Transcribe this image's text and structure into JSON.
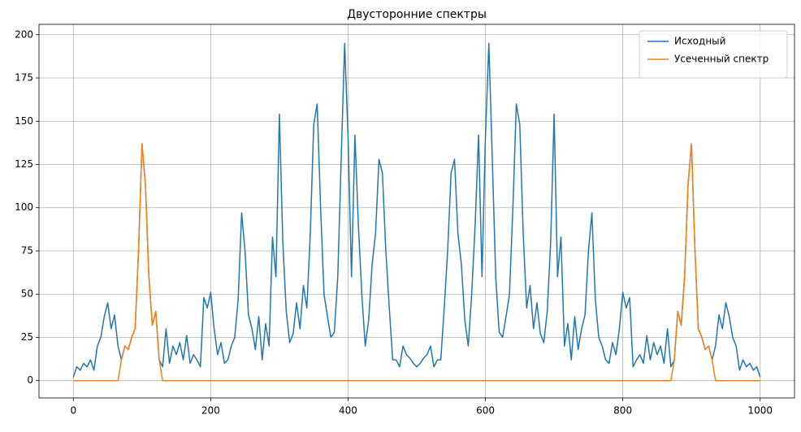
{
  "chart_data": {
    "type": "line",
    "title": "Двусторонние спектры",
    "x": [
      0,
      5,
      10,
      15,
      20,
      25,
      30,
      35,
      40,
      45,
      50,
      55,
      60,
      65,
      70,
      75,
      80,
      85,
      90,
      95,
      100,
      105,
      110,
      115,
      120,
      125,
      130,
      135,
      140,
      145,
      150,
      155,
      160,
      165,
      170,
      175,
      180,
      185,
      190,
      195,
      200,
      205,
      210,
      215,
      220,
      225,
      230,
      235,
      240,
      245,
      250,
      255,
      260,
      265,
      270,
      275,
      280,
      285,
      290,
      295,
      300,
      305,
      310,
      315,
      320,
      325,
      330,
      335,
      340,
      345,
      350,
      355,
      360,
      365,
      370,
      375,
      380,
      385,
      390,
      395,
      400,
      405,
      410,
      415,
      420,
      425,
      430,
      435,
      440,
      445,
      450,
      455,
      460,
      465,
      470,
      475,
      480,
      485,
      490,
      495,
      500,
      505,
      510,
      515,
      520,
      525,
      530,
      535,
      540,
      545,
      550,
      555,
      560,
      565,
      570,
      575,
      580,
      585,
      590,
      595,
      600,
      605,
      610,
      615,
      620,
      625,
      630,
      635,
      640,
      645,
      650,
      655,
      660,
      665,
      670,
      675,
      680,
      685,
      690,
      695,
      700,
      705,
      710,
      715,
      720,
      725,
      730,
      735,
      740,
      745,
      750,
      755,
      760,
      765,
      770,
      775,
      780,
      785,
      790,
      795,
      800,
      805,
      810,
      815,
      820,
      825,
      830,
      835,
      840,
      845,
      850,
      855,
      860,
      865,
      870,
      875,
      880,
      885,
      890,
      895,
      900,
      905,
      910,
      915,
      920,
      925,
      930,
      935,
      940,
      945,
      950,
      955,
      960,
      965,
      970,
      975,
      980,
      985,
      990,
      995,
      1000
    ],
    "series": [
      {
        "name": "Исходный",
        "color": "#1f77b4",
        "values": [
          2,
          8,
          6,
          10,
          8,
          12,
          6,
          20,
          25,
          37,
          45,
          30,
          38,
          20,
          12,
          20,
          18,
          25,
          30,
          76,
          137,
          113,
          60,
          32,
          40,
          12,
          8,
          30,
          10,
          20,
          15,
          22,
          12,
          26,
          10,
          15,
          12,
          8,
          48,
          42,
          51,
          30,
          15,
          22,
          10,
          12,
          20,
          25,
          47,
          97,
          75,
          38,
          30,
          18,
          37,
          12,
          33,
          20,
          83,
          60,
          154,
          80,
          40,
          22,
          27,
          45,
          30,
          55,
          42,
          85,
          148,
          160,
          100,
          50,
          37,
          25,
          28,
          60,
          128,
          195,
          141,
          60,
          142,
          90,
          50,
          20,
          35,
          67,
          85,
          128,
          120,
          75,
          42,
          12,
          12,
          8,
          20,
          15,
          13,
          10,
          8,
          10,
          13,
          15,
          20,
          8,
          12,
          12,
          42,
          75,
          120,
          128,
          85,
          67,
          35,
          20,
          50,
          90,
          142,
          60,
          141,
          195,
          128,
          60,
          28,
          25,
          37,
          50,
          100,
          160,
          148,
          85,
          42,
          55,
          30,
          45,
          27,
          22,
          40,
          80,
          154,
          60,
          83,
          20,
          33,
          12,
          37,
          18,
          30,
          38,
          75,
          97,
          47,
          25,
          20,
          12,
          10,
          22,
          15,
          30,
          51,
          42,
          48,
          8,
          12,
          15,
          10,
          26,
          12,
          22,
          15,
          20,
          10,
          30,
          8,
          12,
          40,
          32,
          60,
          113,
          137,
          76,
          30,
          25,
          18,
          20,
          12,
          20,
          38,
          30,
          45,
          37,
          25,
          20,
          6,
          12,
          8,
          10,
          6,
          8,
          2
        ]
      },
      {
        "name": "Усеченный спектр",
        "color": "#ff7f0e",
        "values": [
          0,
          0,
          0,
          0,
          0,
          0,
          0,
          0,
          0,
          0,
          0,
          0,
          0,
          0,
          12,
          20,
          18,
          25,
          30,
          76,
          137,
          113,
          60,
          32,
          40,
          12,
          0,
          0,
          0,
          0,
          0,
          0,
          0,
          0,
          0,
          0,
          0,
          0,
          0,
          0,
          0,
          0,
          0,
          0,
          0,
          0,
          0,
          0,
          0,
          0,
          0,
          0,
          0,
          0,
          0,
          0,
          0,
          0,
          0,
          0,
          0,
          0,
          0,
          0,
          0,
          0,
          0,
          0,
          0,
          0,
          0,
          0,
          0,
          0,
          0,
          0,
          0,
          0,
          0,
          0,
          0,
          0,
          0,
          0,
          0,
          0,
          0,
          0,
          0,
          0,
          0,
          0,
          0,
          0,
          0,
          0,
          0,
          0,
          0,
          0,
          0,
          0,
          0,
          0,
          0,
          0,
          0,
          0,
          0,
          0,
          0,
          0,
          0,
          0,
          0,
          0,
          0,
          0,
          0,
          0,
          0,
          0,
          0,
          0,
          0,
          0,
          0,
          0,
          0,
          0,
          0,
          0,
          0,
          0,
          0,
          0,
          0,
          0,
          0,
          0,
          0,
          0,
          0,
          0,
          0,
          0,
          0,
          0,
          0,
          0,
          0,
          0,
          0,
          0,
          0,
          0,
          0,
          0,
          0,
          0,
          0,
          0,
          0,
          0,
          0,
          0,
          0,
          0,
          0,
          0,
          0,
          0,
          0,
          0,
          0,
          12,
          40,
          32,
          60,
          113,
          137,
          76,
          30,
          25,
          18,
          20,
          12,
          0,
          0,
          0,
          0,
          0,
          0,
          0,
          0,
          0,
          0,
          0,
          0,
          0,
          0
        ]
      }
    ],
    "xlim": [
      -50,
      1050
    ],
    "xticks": [
      0,
      200,
      400,
      600,
      800,
      1000
    ],
    "ylim": [
      -10,
      206
    ],
    "yticks": [
      0,
      25,
      50,
      75,
      100,
      125,
      150,
      175,
      200
    ],
    "grid": true,
    "legend": "upper right"
  }
}
